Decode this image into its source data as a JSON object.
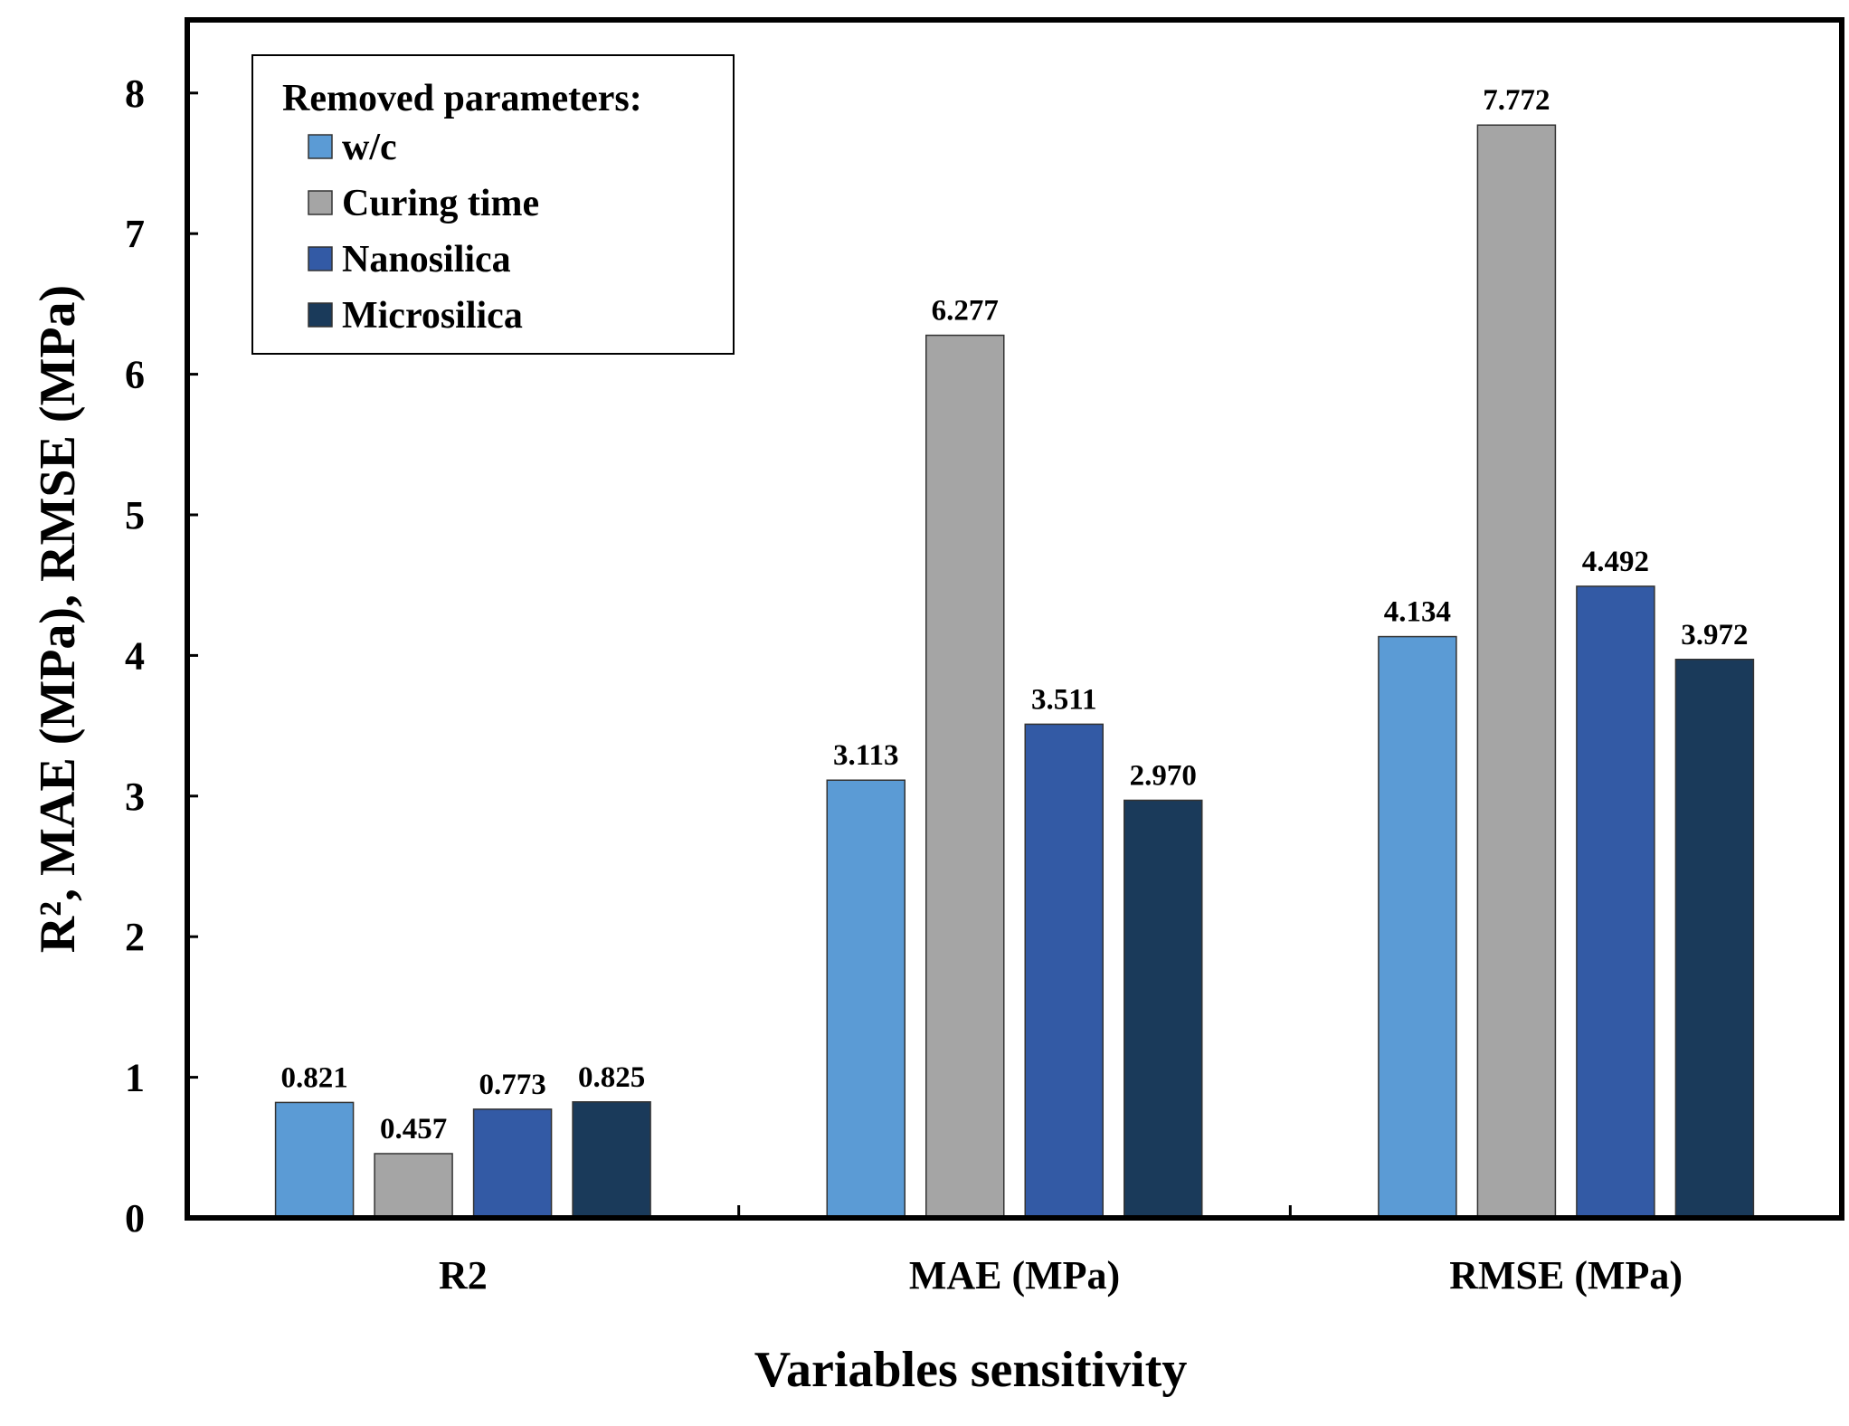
{
  "chart_data": {
    "type": "bar",
    "title": "",
    "xlabel": "Variables sensitivity",
    "ylabel": "R², MAE (MPa), RMSE (MPa)",
    "categories": [
      "R2",
      "MAE (MPa)",
      "RMSE (MPa)"
    ],
    "series": [
      {
        "name": "w/c",
        "color": "#5b9bd5",
        "values": [
          0.821,
          3.113,
          4.134
        ],
        "labels": [
          "0.821",
          "3.113",
          "4.134"
        ]
      },
      {
        "name": "Curing time",
        "color": "#a5a5a5",
        "values": [
          0.457,
          6.277,
          7.772
        ],
        "labels": [
          "0.457",
          "6.277",
          "7.772"
        ]
      },
      {
        "name": "Nanosilica",
        "color": "#335aa5",
        "values": [
          0.773,
          3.511,
          4.492
        ],
        "labels": [
          "0.773",
          "3.511",
          "4.492"
        ]
      },
      {
        "name": "Microsilica",
        "color": "#1a3a5a",
        "values": [
          0.825,
          2.97,
          3.972
        ],
        "labels": [
          "0.825",
          "2.970",
          "3.972"
        ]
      }
    ],
    "ylim": [
      0,
      8.4
    ],
    "yticks": [
      0,
      1,
      2,
      3,
      4,
      5,
      6,
      7,
      8
    ],
    "legend": {
      "title": "Removed parameters:",
      "position": "top-left"
    },
    "grid": false
  }
}
